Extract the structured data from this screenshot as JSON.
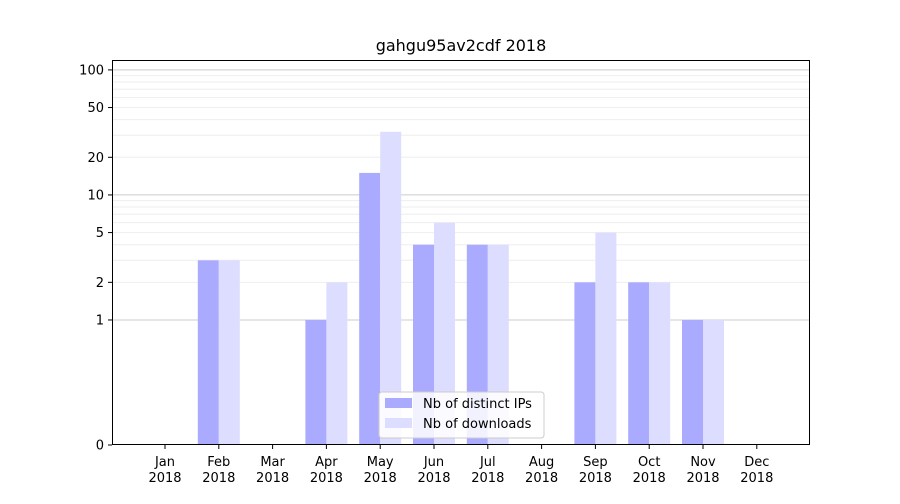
{
  "chart_data": {
    "type": "bar",
    "title": "gahgu95av2cdf 2018",
    "xlabel": "",
    "ylabel": "",
    "yscale": "symlog",
    "yticks": [
      0,
      1,
      2,
      5,
      10,
      20,
      50,
      100
    ],
    "categories": [
      "Jan\n2018",
      "Feb\n2018",
      "Mar\n2018",
      "Apr\n2018",
      "May\n2018",
      "Jun\n2018",
      "Jul\n2018",
      "Aug\n2018",
      "Sep\n2018",
      "Oct\n2018",
      "Nov\n2018",
      "Dec\n2018"
    ],
    "series": [
      {
        "name": "Nb of distinct IPs",
        "color": "#aaaaff",
        "values": [
          0,
          3,
          0,
          1,
          15,
          4,
          4,
          0,
          2,
          2,
          1,
          0
        ]
      },
      {
        "name": "Nb of downloads",
        "color": "#ddddff",
        "values": [
          0,
          3,
          0,
          2,
          32,
          6,
          4,
          0,
          5,
          2,
          1,
          0
        ]
      }
    ],
    "grid": "y",
    "legend_position": "lower-center"
  }
}
